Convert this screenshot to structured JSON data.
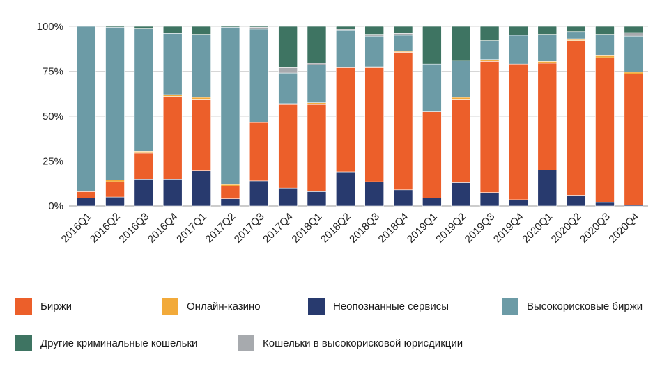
{
  "chart_data": {
    "type": "bar",
    "stacked": true,
    "normalized_percent": true,
    "grid": true,
    "legend_position": "bottom",
    "y_ticks": [
      "0%",
      "25%",
      "50%",
      "75%",
      "100%"
    ],
    "ylim": [
      0,
      100
    ],
    "categories": [
      "2016Q1",
      "2016Q2",
      "2016Q3",
      "2016Q4",
      "2017Q1",
      "2017Q2",
      "2017Q3",
      "2017Q4",
      "2018Q1",
      "2018Q2",
      "2018Q3",
      "2018Q4",
      "2019Q1",
      "2019Q2",
      "2019Q3",
      "2019Q4",
      "2020Q1",
      "2020Q2",
      "2020Q3",
      "2020Q4"
    ],
    "series": [
      {
        "name": "Неопознанные сервисы",
        "color": "#283a6e",
        "values": [
          4.5,
          5,
          15,
          15,
          19.5,
          4,
          14,
          10,
          8,
          19,
          13.5,
          9,
          4.5,
          13,
          7.5,
          3.5,
          20,
          6,
          2,
          0.5
        ]
      },
      {
        "name": "Биржи",
        "color": "#ec5f2a",
        "values": [
          3.5,
          8.5,
          14.5,
          46,
          40,
          7,
          32.5,
          46.5,
          48.5,
          58,
          63.5,
          76.5,
          48,
          46.5,
          73,
          75.5,
          59.5,
          86,
          80.5,
          73
        ]
      },
      {
        "name": "Онлайн-казино",
        "color": "#f2aa3a",
        "values": [
          0,
          1,
          1,
          1,
          1,
          1,
          0,
          0.5,
          1,
          0,
          0.5,
          0.5,
          0,
          1,
          1,
          0,
          1,
          1,
          1.5,
          1
        ]
      },
      {
        "name": "Высокорисковые биржи",
        "color": "#6c9ba6",
        "values": [
          92,
          85,
          68.5,
          34,
          35,
          87.5,
          52,
          17,
          21,
          21,
          17,
          9,
          26.5,
          20.5,
          10.5,
          16,
          15,
          4,
          11.5,
          20
        ]
      },
      {
        "name": "Кошельки в высокорисковой юрисдикции",
        "color": "#a7aaae",
        "values": [
          0,
          0,
          0,
          0,
          0,
          0,
          1,
          3,
          1,
          0.5,
          1,
          1,
          0,
          0,
          0,
          0,
          0,
          0,
          0,
          2
        ]
      },
      {
        "name": "Другие криминальные кошельки",
        "color": "#3e7462",
        "values": [
          0,
          0.5,
          1,
          4,
          4.5,
          0.5,
          0.5,
          23,
          20.5,
          1.5,
          4.5,
          4,
          21,
          19,
          8,
          5,
          4.5,
          3,
          4.5,
          3.5
        ]
      }
    ]
  },
  "legend": [
    {
      "label": "Биржи",
      "color": "#ec5f2a"
    },
    {
      "label": "Онлайн-казино",
      "color": "#f2aa3a"
    },
    {
      "label": "Неопознанные сервисы",
      "color": "#283a6e"
    },
    {
      "label": "Высокорисковые биржи",
      "color": "#6c9ba6"
    },
    {
      "label": "Другие криминальные кошельки",
      "color": "#3e7462"
    },
    {
      "label": "Кошельки в высокорисковой юрисдикции",
      "color": "#a7aaae"
    }
  ]
}
